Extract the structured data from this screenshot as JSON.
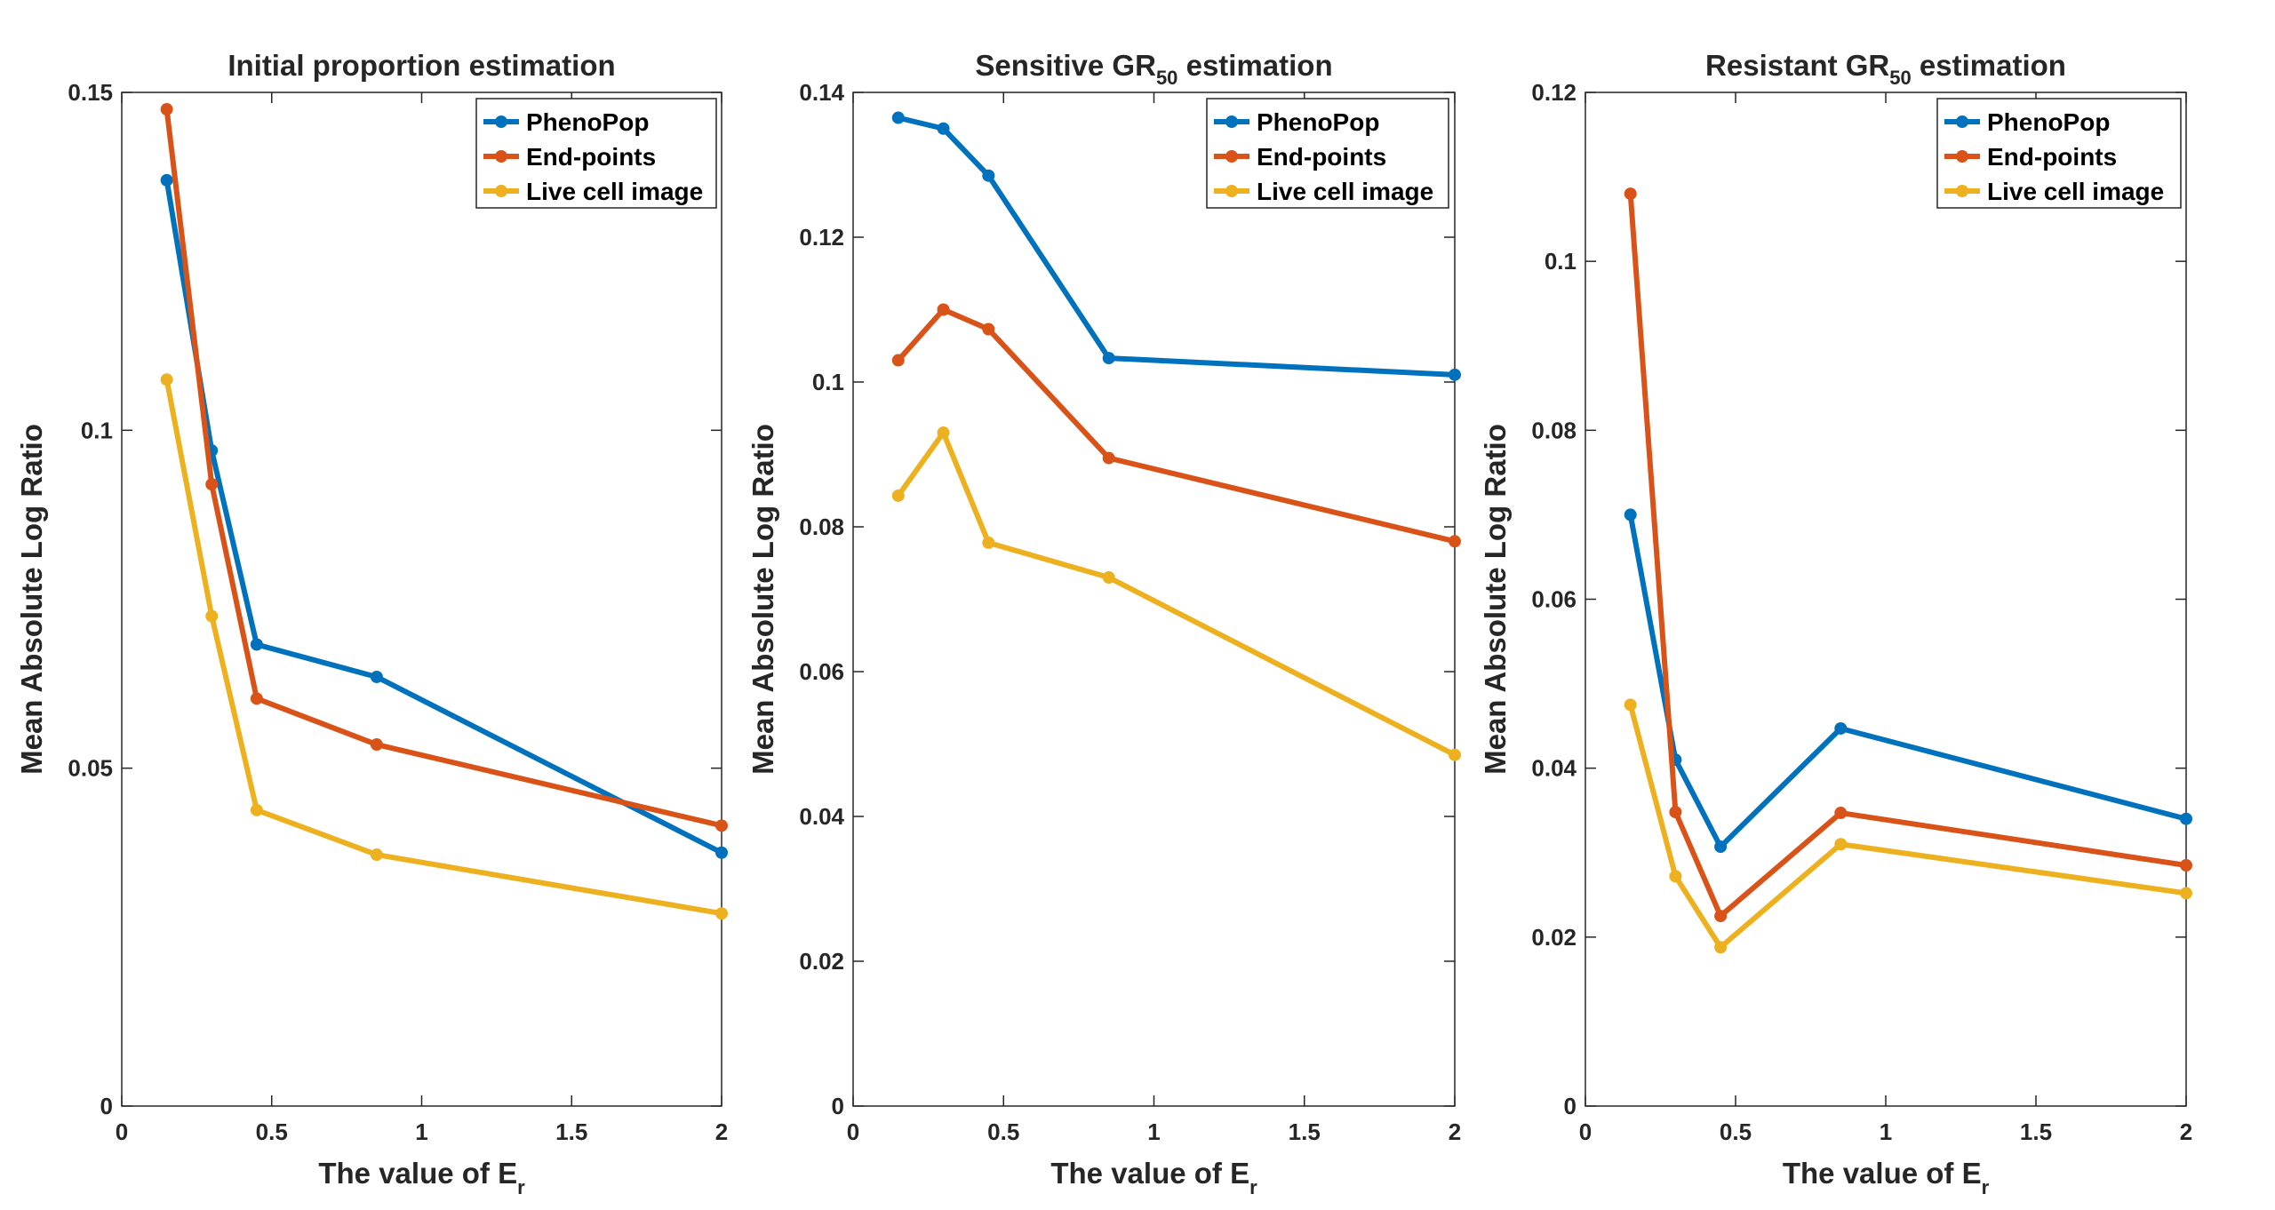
{
  "colors": {
    "PhenoPop": "#0072BD",
    "End-points": "#D95319",
    "Live cell image": "#EDB120"
  },
  "chart_data": [
    {
      "type": "line",
      "title": "Initial proportion estimation",
      "title_sub": "",
      "title_suffix": "",
      "xlabel": "The value of E",
      "xlabel_sub": "r",
      "ylabel": "Mean Absolute Log Ratio",
      "xlim": [
        0,
        2
      ],
      "ylim": [
        0,
        0.15
      ],
      "xticks": [
        0,
        0.5,
        1,
        1.5,
        2
      ],
      "xtick_labels": [
        "0",
        "0.5",
        "1",
        "1.5",
        "2"
      ],
      "yticks": [
        0,
        0.05,
        0.1,
        0.15
      ],
      "ytick_labels": [
        "0",
        "0.05",
        "0.1",
        "0.15"
      ],
      "legend_position": "top-right",
      "x": [
        0.15,
        0.3,
        0.45,
        0.85,
        2
      ],
      "series": [
        {
          "name": "PhenoPop",
          "values": [
            0.137,
            0.097,
            0.0683,
            0.0635,
            0.0375
          ]
        },
        {
          "name": "End-points",
          "values": [
            0.1475,
            0.092,
            0.0603,
            0.0535,
            0.0415
          ]
        },
        {
          "name": "Live cell image",
          "values": [
            0.1075,
            0.0725,
            0.0438,
            0.0372,
            0.0285
          ]
        }
      ]
    },
    {
      "type": "line",
      "title": "Sensitive GR",
      "title_sub": "50",
      "title_suffix": " estimation",
      "xlabel": "The value of E",
      "xlabel_sub": "r",
      "ylabel": "Mean Absolute Log Ratio",
      "xlim": [
        0,
        2
      ],
      "ylim": [
        0,
        0.14
      ],
      "xticks": [
        0,
        0.5,
        1,
        1.5,
        2
      ],
      "xtick_labels": [
        "0",
        "0.5",
        "1",
        "1.5",
        "2"
      ],
      "yticks": [
        0,
        0.02,
        0.04,
        0.06,
        0.08,
        0.1,
        0.12,
        0.14
      ],
      "ytick_labels": [
        "0",
        "0.02",
        "0.04",
        "0.06",
        "0.08",
        "0.1",
        "0.12",
        "0.14"
      ],
      "legend_position": "top-right",
      "x": [
        0.15,
        0.3,
        0.45,
        0.85,
        2
      ],
      "series": [
        {
          "name": "PhenoPop",
          "values": [
            0.1365,
            0.135,
            0.1285,
            0.1033,
            0.101
          ]
        },
        {
          "name": "End-points",
          "values": [
            0.103,
            0.11,
            0.1073,
            0.0895,
            0.078
          ]
        },
        {
          "name": "Live cell image",
          "values": [
            0.0843,
            0.093,
            0.0778,
            0.073,
            0.0485
          ]
        }
      ]
    },
    {
      "type": "line",
      "title": "Resistant GR",
      "title_sub": "50",
      "title_suffix": " estimation",
      "xlabel": "The value of E",
      "xlabel_sub": "r",
      "ylabel": "Mean Absolute Log Ratio",
      "xlim": [
        0,
        2
      ],
      "ylim": [
        0,
        0.12
      ],
      "xticks": [
        0,
        0.5,
        1,
        1.5,
        2
      ],
      "xtick_labels": [
        "0",
        "0.5",
        "1",
        "1.5",
        "2"
      ],
      "yticks": [
        0,
        0.02,
        0.04,
        0.06,
        0.08,
        0.1,
        0.12
      ],
      "ytick_labels": [
        "0",
        "0.02",
        "0.04",
        "0.06",
        "0.08",
        "0.1",
        "0.12"
      ],
      "legend_position": "top-right",
      "x": [
        0.15,
        0.3,
        0.45,
        0.85,
        2
      ],
      "series": [
        {
          "name": "PhenoPop",
          "values": [
            0.07,
            0.041,
            0.0307,
            0.0447,
            0.034
          ]
        },
        {
          "name": "End-points",
          "values": [
            0.108,
            0.0348,
            0.0225,
            0.0347,
            0.0285
          ]
        },
        {
          "name": "Live cell image",
          "values": [
            0.0475,
            0.0272,
            0.0188,
            0.031,
            0.0252
          ]
        }
      ]
    }
  ]
}
